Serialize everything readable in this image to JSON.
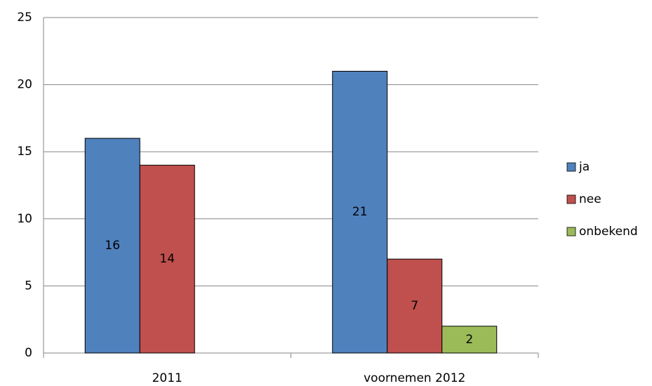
{
  "chart_data": {
    "type": "bar",
    "categories": [
      "2011",
      "voornemen 2012"
    ],
    "series": [
      {
        "name": "ja",
        "color": "#4f81bd",
        "values": [
          16,
          21
        ]
      },
      {
        "name": "nee",
        "color": "#c0504d",
        "values": [
          14,
          7
        ]
      },
      {
        "name": "onbekend",
        "color": "#9bbb59",
        "values": [
          null,
          2
        ]
      }
    ],
    "ylim": [
      0,
      25
    ],
    "yticks": [
      0,
      5,
      10,
      15,
      20,
      25
    ],
    "grid": true,
    "legend": "right",
    "data_labels": true
  }
}
